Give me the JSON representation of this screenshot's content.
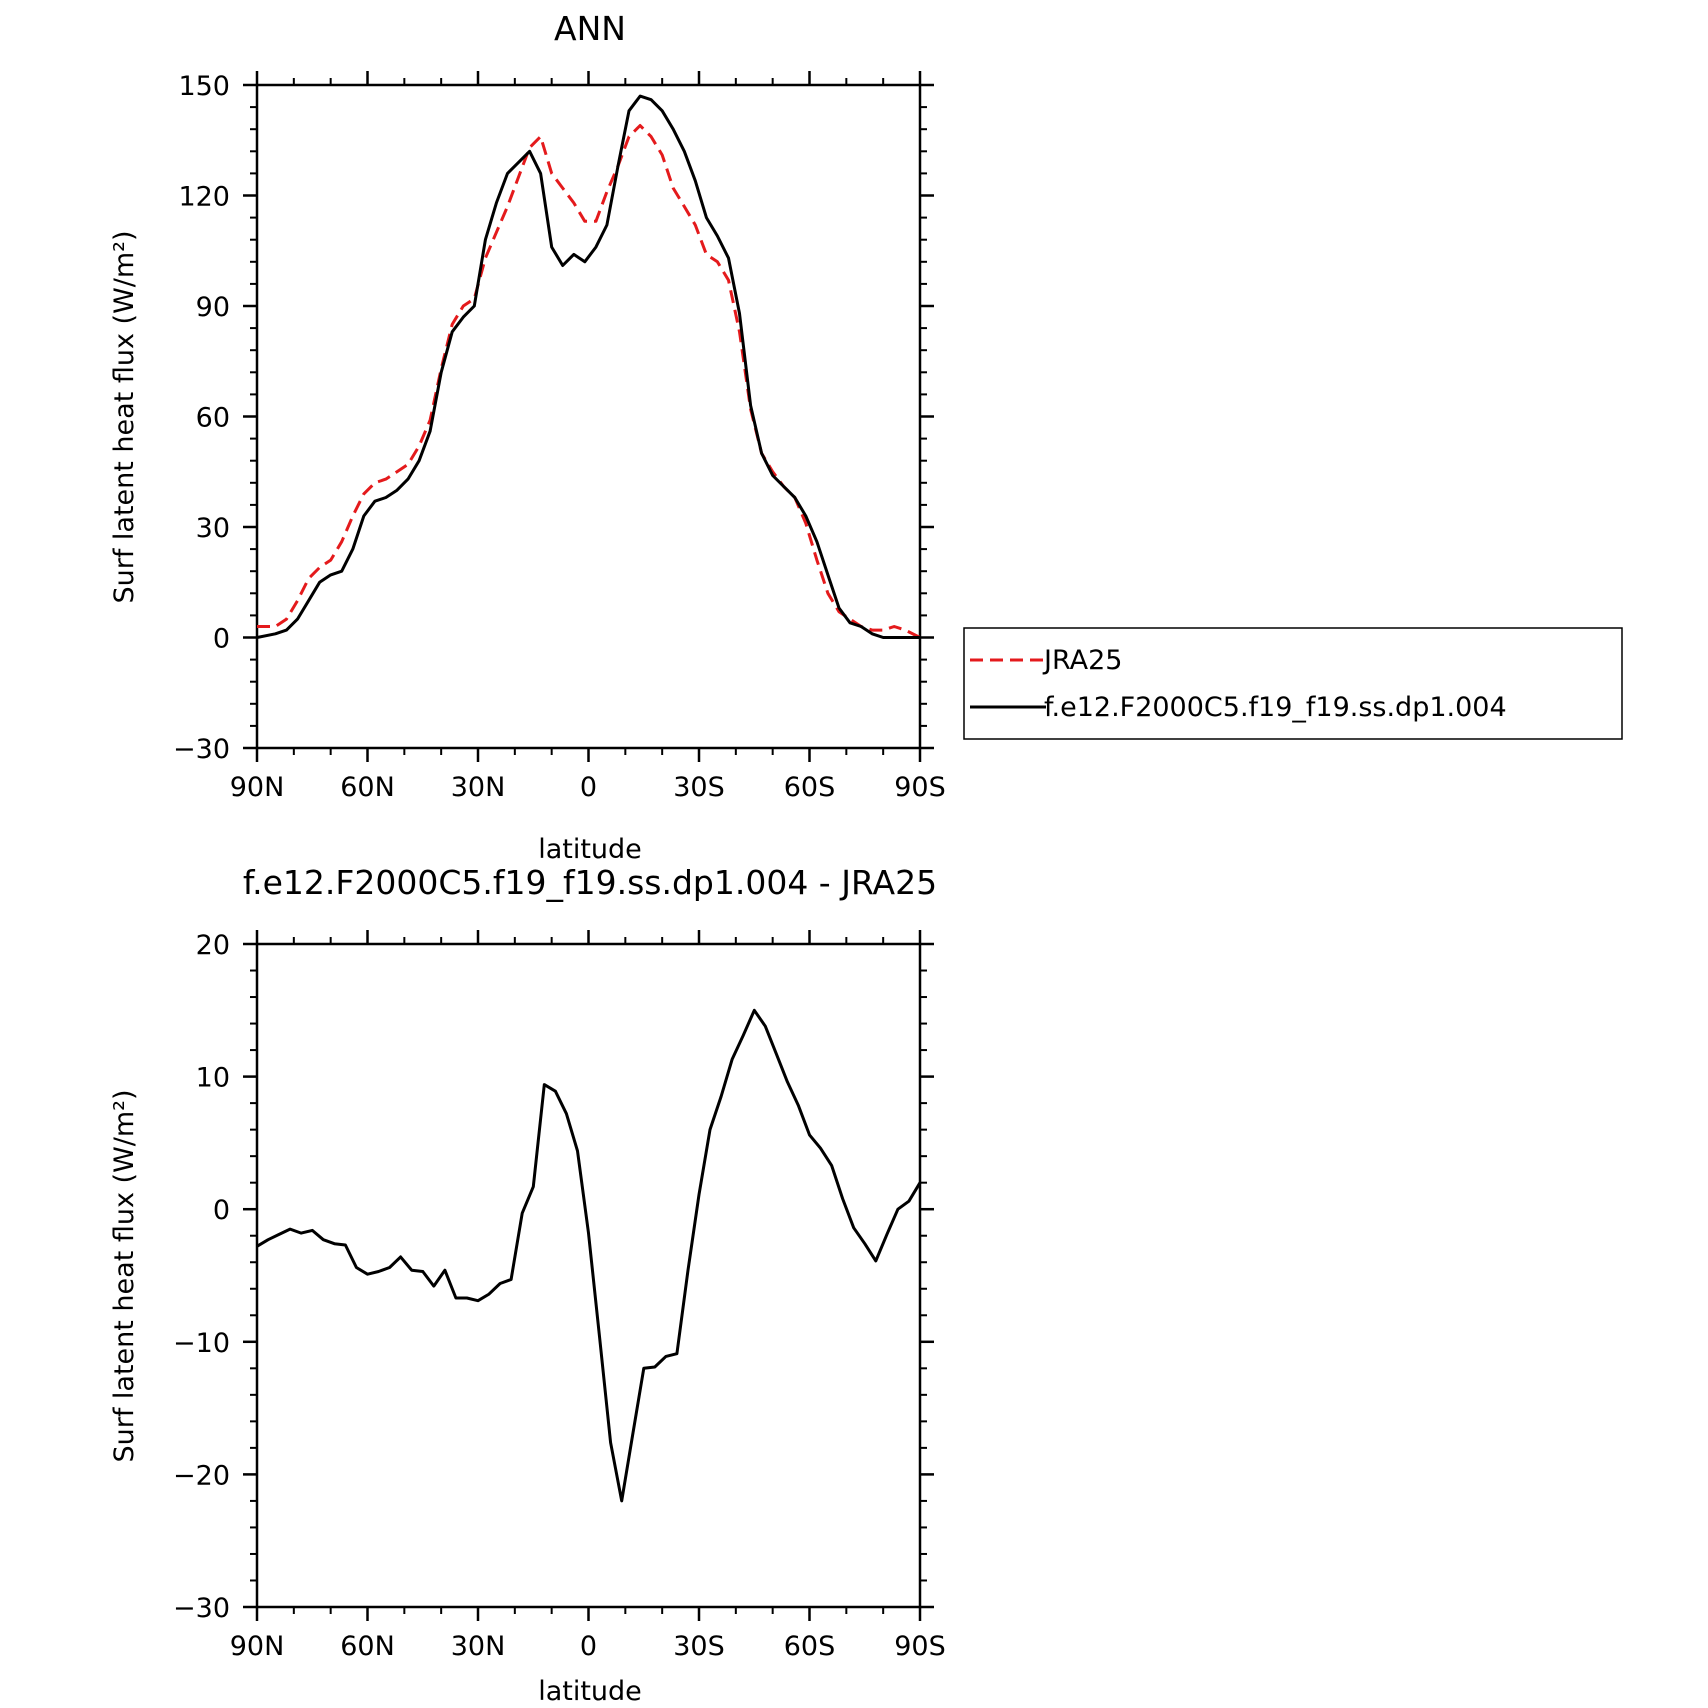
{
  "chart_data": [
    {
      "type": "line",
      "title": "ANN",
      "xlabel": "latitude",
      "ylabel": "Surf latent heat flux (W/m²)",
      "xlim": [
        90,
        -90
      ],
      "ylim": [
        -30,
        150
      ],
      "xticks": [
        {
          "value": 90,
          "label": "90N"
        },
        {
          "value": 60,
          "label": "60N"
        },
        {
          "value": 30,
          "label": "30N"
        },
        {
          "value": 0,
          "label": "0"
        },
        {
          "value": -30,
          "label": "30S"
        },
        {
          "value": -60,
          "label": "60S"
        },
        {
          "value": -90,
          "label": "90S"
        }
      ],
      "yticks": [
        -30,
        0,
        30,
        60,
        90,
        120,
        150
      ],
      "grid": false,
      "legend": "right",
      "series": [
        {
          "name": "JRA25",
          "color": "#e41a1c",
          "dash": "dashed",
          "x": [
            90,
            85,
            82,
            79,
            76,
            73,
            70,
            67,
            64,
            61,
            58,
            55,
            52,
            49,
            46,
            43,
            40,
            37,
            34,
            31,
            28,
            25,
            22,
            19,
            16,
            13,
            10,
            7,
            4,
            1,
            -2,
            -5,
            -8,
            -11,
            -14,
            -17,
            -20,
            -23,
            -26,
            -29,
            -32,
            -35,
            -38,
            -41,
            -44,
            -47,
            -50,
            -53,
            -56,
            -59,
            -62,
            -65,
            -68,
            -71,
            -74,
            -77,
            -80,
            -83,
            -86,
            -90
          ],
          "values": [
            3,
            3,
            5,
            10,
            16,
            19,
            21,
            26,
            33,
            39,
            42,
            43,
            45,
            47,
            52,
            59,
            73,
            85,
            90,
            92,
            103,
            110,
            117,
            125,
            133,
            136,
            126,
            122,
            118,
            113,
            113,
            121,
            128,
            136,
            139,
            136,
            131,
            122,
            117,
            112,
            104,
            102,
            97,
            83,
            62,
            50,
            45,
            41,
            38,
            31,
            21,
            12,
            7,
            5,
            3,
            2,
            2,
            3,
            2,
            0
          ]
        },
        {
          "name": "f.e12.F2000C5.f19_f19.ss.dp1.004",
          "color": "#000000",
          "dash": "solid",
          "x": [
            90,
            85,
            82,
            79,
            76,
            73,
            70,
            67,
            64,
            61,
            58,
            55,
            52,
            49,
            46,
            43,
            40,
            37,
            34,
            31,
            28,
            25,
            22,
            19,
            16,
            13,
            10,
            7,
            4,
            1,
            -2,
            -5,
            -8,
            -11,
            -14,
            -17,
            -20,
            -23,
            -26,
            -29,
            -32,
            -35,
            -38,
            -41,
            -44,
            -47,
            -50,
            -53,
            -56,
            -59,
            -62,
            -65,
            -68,
            -71,
            -74,
            -77,
            -80,
            -83,
            -86,
            -90
          ],
          "values": [
            0,
            1,
            2,
            5,
            10,
            15,
            17,
            18,
            24,
            33,
            37,
            38,
            40,
            43,
            48,
            56,
            72,
            83,
            87,
            90,
            108,
            118,
            126,
            129,
            132,
            126,
            106,
            101,
            104,
            102,
            106,
            112,
            128,
            143,
            147,
            146,
            143,
            138,
            132,
            124,
            114,
            109,
            103,
            88,
            63,
            50,
            44,
            41,
            38,
            33,
            26,
            17,
            8,
            4,
            3,
            1,
            0,
            0,
            0,
            0
          ]
        }
      ]
    },
    {
      "type": "line",
      "title": "f.e12.F2000C5.f19_f19.ss.dp1.004 - JRA25",
      "xlabel": "latitude",
      "ylabel": "Surf latent heat flux (W/m²)",
      "xlim": [
        90,
        -90
      ],
      "ylim": [
        -30,
        20
      ],
      "xticks": [
        {
          "value": 90,
          "label": "90N"
        },
        {
          "value": 60,
          "label": "60N"
        },
        {
          "value": 30,
          "label": "30N"
        },
        {
          "value": 0,
          "label": "0"
        },
        {
          "value": -30,
          "label": "30S"
        },
        {
          "value": -60,
          "label": "60S"
        },
        {
          "value": -90,
          "label": "90S"
        }
      ],
      "yticks": [
        -30,
        -20,
        -10,
        0,
        10,
        20
      ],
      "grid": false,
      "series": [
        {
          "color": "#000000",
          "dash": "solid",
          "x": [
            90,
            87,
            84,
            81,
            78,
            75,
            72,
            69,
            66,
            63,
            60,
            57,
            54,
            51,
            48,
            45,
            42,
            39,
            36,
            33,
            30,
            27,
            24,
            21,
            18,
            15,
            12,
            9,
            6,
            3,
            0,
            -3,
            -6,
            -9,
            -12,
            -15,
            -18,
            -21,
            -24,
            -27,
            -30,
            -33,
            -36,
            -39,
            -42,
            -45,
            -48,
            -51,
            -54,
            -57,
            -60,
            -63,
            -66,
            -69,
            -72,
            -75,
            -78,
            -81,
            -84,
            -87,
            -90
          ],
          "values": [
            -2.8,
            -2.3,
            -1.9,
            -1.5,
            -1.8,
            -1.6,
            -2.3,
            -2.6,
            -2.7,
            -4.4,
            -4.9,
            -4.7,
            -4.4,
            -3.6,
            -4.6,
            -4.7,
            -5.8,
            -4.6,
            -6.7,
            -6.7,
            -6.9,
            -6.4,
            -5.6,
            -5.3,
            -0.3,
            1.7,
            9.4,
            8.9,
            7.2,
            4.4,
            -1.8,
            -9.6,
            -17.6,
            -22.0,
            -17.0,
            -12.0,
            -11.9,
            -11.1,
            -10.9,
            -4.6,
            1.1,
            6.0,
            8.5,
            11.3,
            13.1,
            15.0,
            13.8,
            11.7,
            9.6,
            7.8,
            5.6,
            4.6,
            3.3,
            0.8,
            -1.4,
            -2.6,
            -3.9,
            -1.9,
            0.0,
            0.6,
            2.0
          ]
        }
      ]
    }
  ]
}
